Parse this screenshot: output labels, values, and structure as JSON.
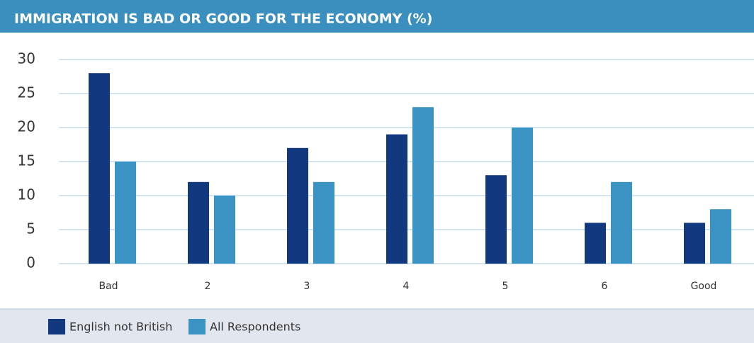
{
  "chart_data": {
    "type": "bar",
    "title": "IMMIGRATION IS BAD OR GOOD FOR THE ECONOMY (%)",
    "categories": [
      "Bad",
      "2",
      "3",
      "4",
      "5",
      "6",
      "Good"
    ],
    "series": [
      {
        "name": "English not British",
        "color": "#12397f",
        "values": [
          28,
          12,
          17,
          19,
          13,
          6,
          6
        ]
      },
      {
        "name": "All Respondents",
        "color": "#3a93c2",
        "values": [
          15,
          10,
          12,
          23,
          20,
          12,
          8
        ]
      }
    ],
    "ylim": [
      0,
      30
    ],
    "yticks": [
      0,
      5,
      10,
      15,
      20,
      25,
      30
    ],
    "grid": true,
    "legend": "bottom"
  }
}
